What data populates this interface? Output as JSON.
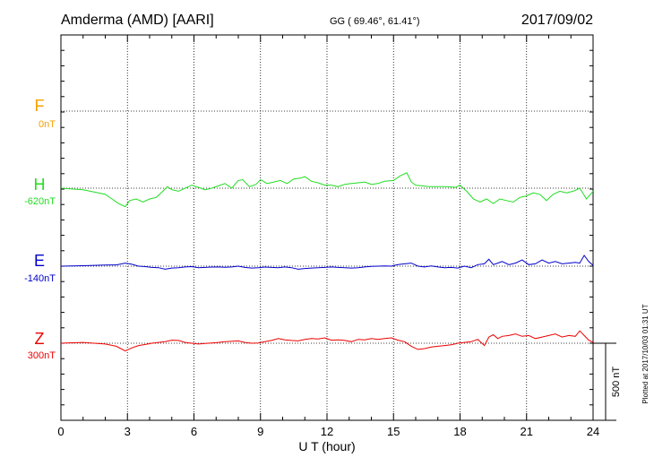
{
  "header": {
    "station": "Amderma (AMD)  [AARI]",
    "coords": "GG ( 69.46°,  61.41°)",
    "date": "2017/09/02"
  },
  "footer": {
    "plotted": "Plotted at 2017/10/03 01:31  UT"
  },
  "scale_bar": {
    "label": "500 nT",
    "value_nT": 500
  },
  "colors": {
    "F": "#f5a000",
    "H": "#22dd22",
    "E": "#0000cc",
    "Z": "#ee0000"
  },
  "chart_data": {
    "type": "line",
    "xlabel": "U T (hour)",
    "xlim": [
      0,
      24
    ],
    "xticks": [
      "0",
      "3",
      "6",
      "9",
      "12",
      "15",
      "18",
      "21",
      "24"
    ],
    "units": "nT",
    "series": [
      {
        "name": "F",
        "baseline_label": "0nT",
        "baseline_nT": 0,
        "x": [],
        "values": []
      },
      {
        "name": "H",
        "baseline_label": "-620nT",
        "baseline_nT": -620,
        "x": [
          0,
          0.5,
          1,
          1.5,
          2,
          2.3,
          2.6,
          2.9,
          3.1,
          3.4,
          3.7,
          4,
          4.3,
          4.6,
          4.8,
          5,
          5.3,
          5.6,
          5.9,
          6.2,
          6.5,
          6.8,
          7.1,
          7.4,
          7.7,
          8,
          8.2,
          8.5,
          8.8,
          9,
          9.3,
          9.6,
          9.9,
          10.2,
          10.5,
          10.8,
          11,
          11.3,
          11.6,
          11.9,
          12.2,
          12.5,
          12.8,
          13.1,
          13.4,
          13.7,
          14,
          14.3,
          14.6,
          15,
          15.3,
          15.6,
          15.8,
          16,
          16.3,
          16.6,
          17,
          17.4,
          17.8,
          18,
          18.3,
          18.6,
          18.9,
          19.2,
          19.5,
          19.8,
          20.1,
          20.4,
          20.7,
          21,
          21.3,
          21.6,
          21.9,
          22.2,
          22.5,
          22.8,
          23.1,
          23.4,
          23.7,
          24
        ],
        "values": [
          -620,
          -625,
          -630,
          -645,
          -660,
          -690,
          -720,
          -740,
          -700,
          -690,
          -710,
          -690,
          -680,
          -640,
          -610,
          -630,
          -640,
          -620,
          -600,
          -615,
          -630,
          -620,
          -605,
          -590,
          -620,
          -570,
          -565,
          -610,
          -595,
          -565,
          -590,
          -580,
          -570,
          -590,
          -560,
          -555,
          -545,
          -575,
          -585,
          -600,
          -600,
          -610,
          -595,
          -590,
          -585,
          -580,
          -595,
          -590,
          -575,
          -570,
          -540,
          -520,
          -580,
          -600,
          -605,
          -610,
          -610,
          -610,
          -615,
          -600,
          -640,
          -690,
          -710,
          -690,
          -720,
          -690,
          -700,
          -710,
          -680,
          -670,
          -650,
          -660,
          -700,
          -660,
          -640,
          -650,
          -640,
          -620,
          -690,
          -640
        ]
      },
      {
        "name": "E",
        "baseline_label": "-140nT",
        "baseline_nT": -140,
        "x": [
          0,
          0.5,
          1,
          1.5,
          2,
          2.5,
          2.9,
          3.2,
          3.5,
          3.8,
          4.1,
          4.4,
          4.7,
          5,
          5.3,
          5.6,
          5.9,
          6.2,
          6.5,
          6.8,
          7.1,
          7.4,
          7.7,
          8,
          8.3,
          8.6,
          8.9,
          9.2,
          9.5,
          9.8,
          10.1,
          10.4,
          10.7,
          11,
          11.3,
          11.6,
          11.9,
          12.2,
          12.5,
          12.8,
          13.1,
          13.4,
          13.7,
          14,
          14.3,
          14.6,
          14.9,
          15.2,
          15.5,
          15.8,
          16.1,
          16.4,
          16.7,
          17,
          17.3,
          17.6,
          17.9,
          18.2,
          18.5,
          18.8,
          19.1,
          19.3,
          19.5,
          19.7,
          19.9,
          20.2,
          20.5,
          20.8,
          21.1,
          21.4,
          21.7,
          22,
          22.3,
          22.6,
          22.9,
          23.2,
          23.4,
          23.6,
          23.8,
          24
        ],
        "values": [
          -140,
          -138,
          -137,
          -135,
          -133,
          -132,
          -120,
          -128,
          -140,
          -143,
          -148,
          -150,
          -160,
          -152,
          -150,
          -145,
          -143,
          -150,
          -148,
          -146,
          -145,
          -147,
          -145,
          -140,
          -148,
          -152,
          -150,
          -146,
          -148,
          -150,
          -145,
          -150,
          -160,
          -155,
          -152,
          -150,
          -148,
          -145,
          -148,
          -150,
          -152,
          -150,
          -145,
          -142,
          -140,
          -138,
          -140,
          -130,
          -125,
          -120,
          -140,
          -145,
          -138,
          -145,
          -150,
          -148,
          -152,
          -140,
          -150,
          -130,
          -125,
          -95,
          -130,
          -120,
          -110,
          -130,
          -120,
          -100,
          -130,
          -125,
          -100,
          -120,
          -110,
          -125,
          -120,
          -115,
          -120,
          -70,
          -110,
          -135
        ]
      },
      {
        "name": "Z",
        "baseline_label": "300nT",
        "baseline_nT": 300,
        "x": [
          0,
          0.5,
          1,
          1.5,
          2,
          2.5,
          2.9,
          3.2,
          3.5,
          3.8,
          4.1,
          4.4,
          4.7,
          5,
          5.3,
          5.6,
          5.9,
          6.2,
          6.5,
          6.8,
          7.1,
          7.4,
          7.7,
          8,
          8.3,
          8.6,
          8.9,
          9.2,
          9.5,
          9.8,
          10.1,
          10.4,
          10.7,
          11,
          11.3,
          11.6,
          11.9,
          12.2,
          12.5,
          12.8,
          13.1,
          13.4,
          13.7,
          14,
          14.3,
          14.6,
          14.9,
          15.2,
          15.5,
          15.8,
          16.1,
          16.4,
          16.7,
          17,
          17.3,
          17.6,
          17.9,
          18.2,
          18.5,
          18.8,
          19.1,
          19.3,
          19.5,
          19.7,
          19.9,
          20.2,
          20.5,
          20.8,
          21.1,
          21.4,
          21.7,
          22,
          22.3,
          22.6,
          22.9,
          23.2,
          23.4,
          23.6,
          23.8,
          24
        ],
        "values": [
          300,
          303,
          305,
          300,
          295,
          280,
          250,
          270,
          285,
          292,
          300,
          305,
          310,
          320,
          318,
          305,
          300,
          295,
          298,
          302,
          305,
          310,
          312,
          315,
          305,
          300,
          302,
          310,
          318,
          330,
          322,
          318,
          315,
          325,
          330,
          328,
          335,
          320,
          322,
          318,
          310,
          325,
          322,
          330,
          325,
          330,
          335,
          320,
          310,
          280,
          260,
          265,
          275,
          280,
          285,
          290,
          300,
          305,
          310,
          325,
          285,
          340,
          355,
          330,
          345,
          350,
          360,
          345,
          350,
          330,
          340,
          350,
          360,
          340,
          350,
          345,
          380,
          350,
          320,
          305
        ]
      }
    ]
  }
}
